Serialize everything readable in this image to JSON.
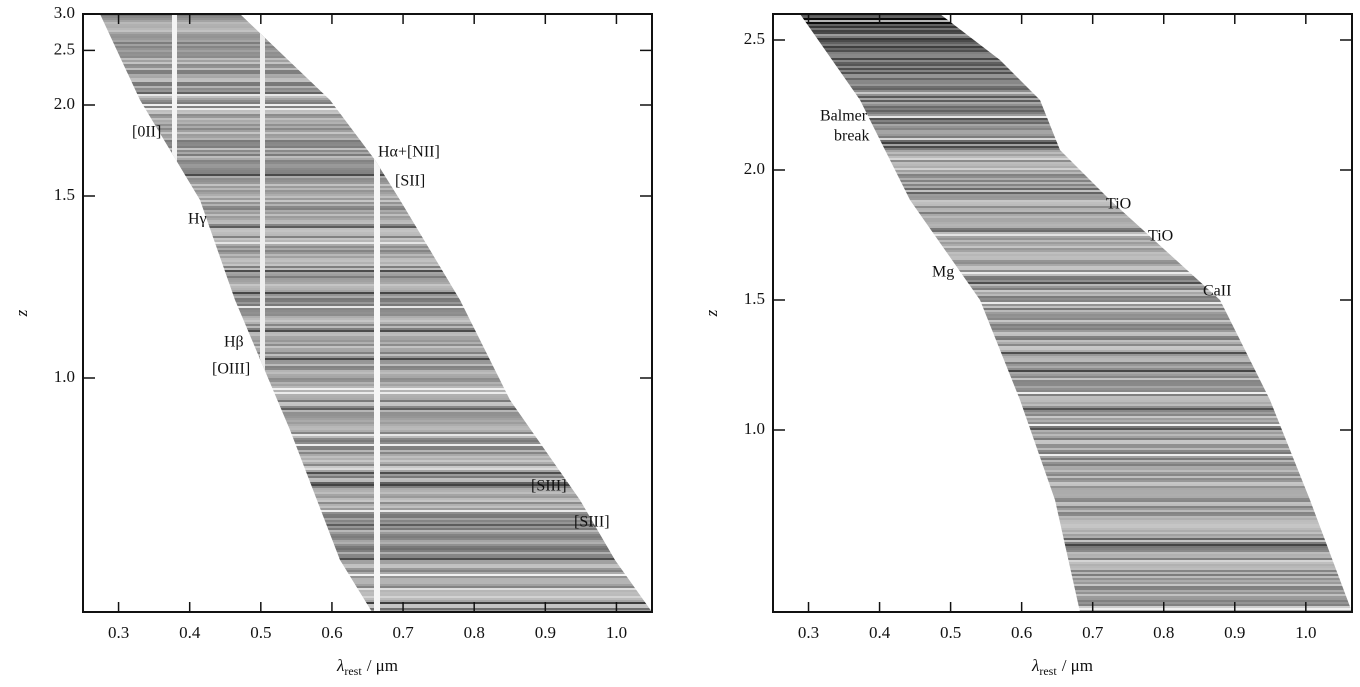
{
  "chart_data": [
    {
      "type": "spectra",
      "ylabel": "z",
      "xlabel": {
        "symbol": "λ",
        "subscript": "rest",
        "unit": "/ μm"
      },
      "xlim": [
        0.25,
        1.05
      ],
      "xticks": [
        0.3,
        0.4,
        0.5,
        0.6,
        0.7,
        0.8,
        0.9,
        {
          "value": 1.0,
          "label": "1.0"
        }
      ],
      "yscale": "reciprocal",
      "ylim": [
        0.7,
        3.0
      ],
      "yticks": [
        {
          "value": 3.0,
          "label": "3.0"
        },
        2.5,
        {
          "value": 2.0,
          "label": "2.0"
        },
        1.5,
        {
          "value": 1.0,
          "label": "1.0"
        }
      ],
      "annotations": [
        "[0II]",
        "Hα+[NII]",
        "[SII]",
        "Hγ",
        "Hβ",
        "[OIII]",
        "[SIII]",
        "[SIII]"
      ]
    },
    {
      "type": "spectra",
      "ylabel": "z",
      "xlabel": {
        "symbol": "λ",
        "subscript": "rest",
        "unit": "/ μm"
      },
      "xlim": [
        0.25,
        1.065
      ],
      "xticks": [
        0.3,
        0.4,
        0.5,
        0.6,
        0.7,
        0.8,
        0.9,
        {
          "value": 1.0,
          "label": "1.0"
        }
      ],
      "yscale": "linear",
      "ylim": [
        0.3,
        2.6
      ],
      "yticks": [
        2.5,
        {
          "value": 2.0,
          "label": "2.0"
        },
        1.5,
        {
          "value": 1.0,
          "label": "1.0"
        }
      ],
      "annotations": [
        "Balmer",
        "break",
        "TiO",
        "TiO",
        "Mg",
        "CaII"
      ]
    }
  ]
}
